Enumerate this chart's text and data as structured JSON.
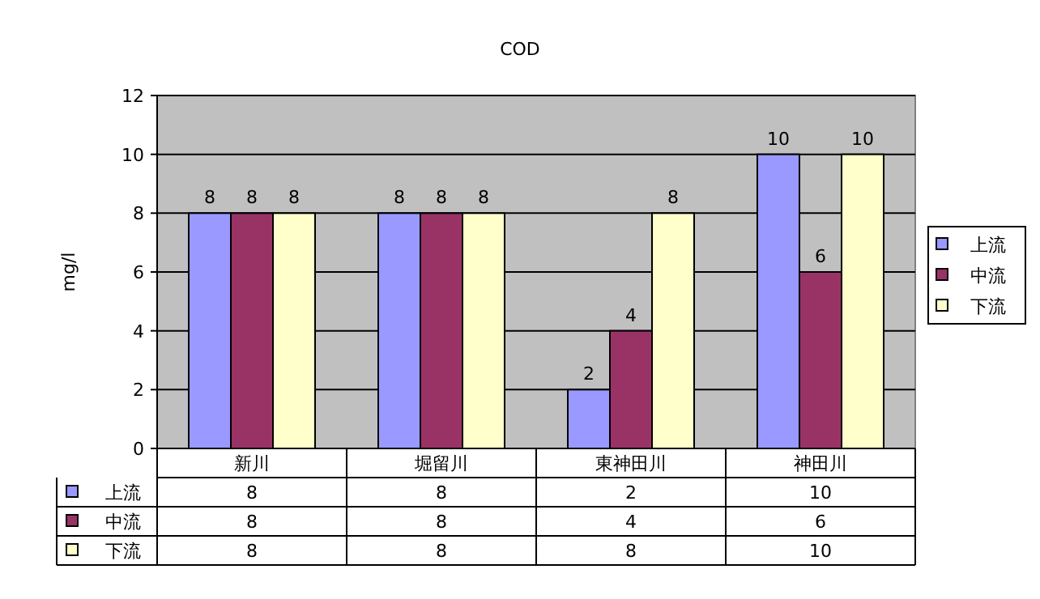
{
  "chart_data": {
    "type": "bar",
    "title": "COD",
    "ylabel": "mg/l",
    "categories": [
      "新川",
      "堀留川",
      "東神田川",
      "神田川"
    ],
    "series": [
      {
        "name": "上流",
        "color": "#9999ff",
        "values": [
          8,
          8,
          2,
          10
        ]
      },
      {
        "name": "中流",
        "color": "#993366",
        "values": [
          8,
          8,
          4,
          6
        ]
      },
      {
        "name": "下流",
        "color": "#ffffcc",
        "values": [
          8,
          8,
          8,
          10
        ]
      }
    ],
    "ylim": [
      0,
      12
    ],
    "yticks": [
      0,
      2,
      4,
      6,
      8,
      10,
      12
    ],
    "grid": "y",
    "legend": "right",
    "data_labels": true,
    "annotations": [
      "8",
      "8",
      "2",
      "10",
      "8",
      "8",
      "4",
      "6",
      "8",
      "8",
      "8",
      "10"
    ]
  }
}
